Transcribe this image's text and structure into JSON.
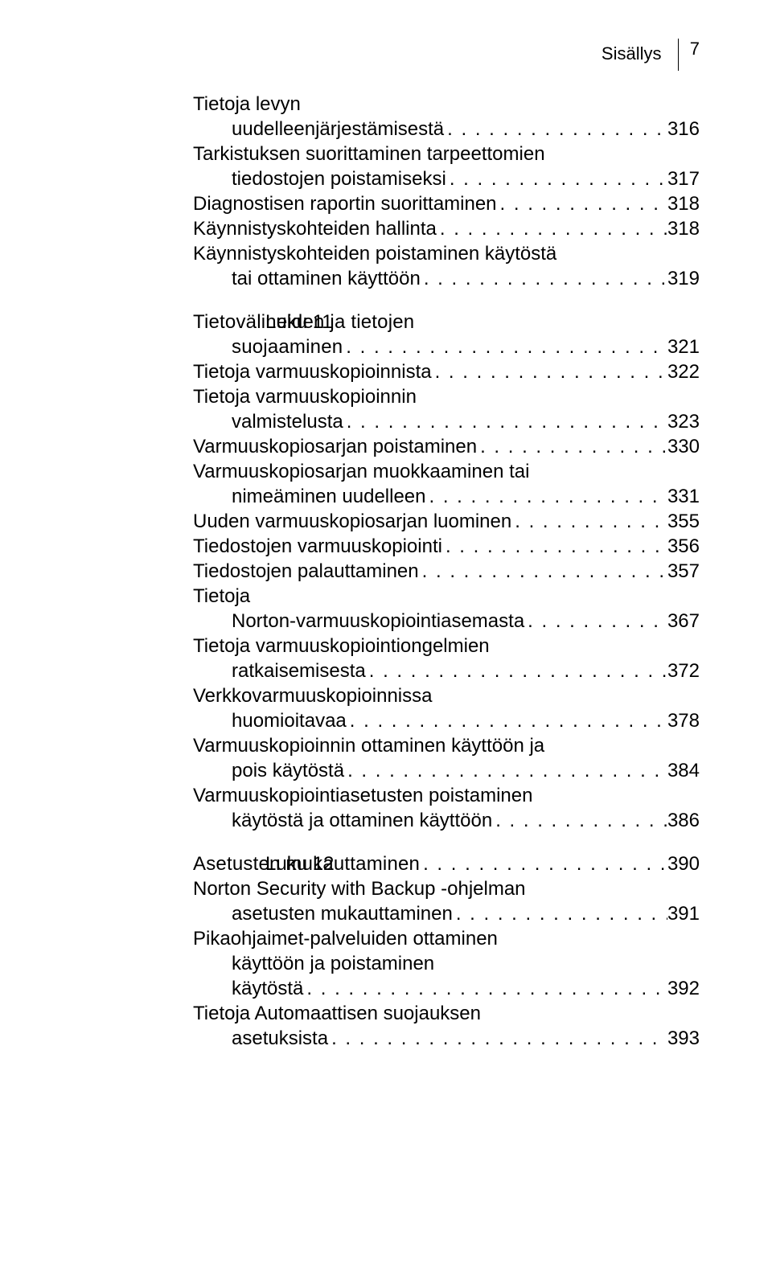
{
  "page_header": {
    "label": "Sisällys",
    "number": "7"
  },
  "intro_block": [
    {
      "text": "Tietoja levyn",
      "cont": true
    },
    {
      "text": "uudelleenjärjestämisestä",
      "indent": true,
      "page": "316"
    },
    {
      "text": "Tarkistuksen suorittaminen tarpeettomien",
      "cont": true
    },
    {
      "text": "tiedostojen poistamiseksi",
      "indent": true,
      "page": "317"
    },
    {
      "text": "Diagnostisen raportin suorittaminen",
      "page": "318"
    },
    {
      "text": "Käynnistyskohteiden hallinta",
      "page": "318"
    },
    {
      "text": "Käynnistyskohteiden poistaminen käytöstä",
      "cont": true
    },
    {
      "text": "tai ottaminen käyttöön",
      "indent": true,
      "page": "319"
    }
  ],
  "chapters": [
    {
      "label": "Luku 11",
      "head": {
        "text": "Tietovälineiden ja tietojen",
        "cont": true
      },
      "head2": {
        "text": "suojaaminen",
        "indent": true,
        "page": "321"
      },
      "entries": [
        {
          "text": "Tietoja varmuuskopioinnista",
          "page": "322"
        },
        {
          "text": "Tietoja varmuuskopioinnin",
          "cont": true
        },
        {
          "text": "valmistelusta",
          "indent": true,
          "page": "323"
        },
        {
          "text": "Varmuuskopiosarjan poistaminen",
          "page": "330"
        },
        {
          "text": "Varmuuskopiosarjan muokkaaminen tai",
          "cont": true
        },
        {
          "text": "nimeäminen uudelleen",
          "indent": true,
          "page": "331"
        },
        {
          "text": "Uuden varmuuskopiosarjan luominen",
          "page": "355"
        },
        {
          "text": "Tiedostojen varmuuskopiointi",
          "page": "356"
        },
        {
          "text": "Tiedostojen palauttaminen",
          "page": "357"
        },
        {
          "text": "Tietoja",
          "cont": true
        },
        {
          "text": "Norton-varmuuskopiointiasemasta",
          "indent": true,
          "page": "367"
        },
        {
          "text": "Tietoja varmuuskopiointiongelmien",
          "cont": true
        },
        {
          "text": "ratkaisemisesta",
          "indent": true,
          "page": "372"
        },
        {
          "text": "Verkkovarmuuskopioinnissa",
          "cont": true
        },
        {
          "text": "huomioitavaa",
          "indent": true,
          "page": "378"
        },
        {
          "text": "Varmuuskopioinnin ottaminen käyttöön ja",
          "cont": true
        },
        {
          "text": "pois käytöstä",
          "indent": true,
          "page": "384"
        },
        {
          "text": "Varmuuskopiointiasetusten poistaminen",
          "cont": true
        },
        {
          "text": "käytöstä ja ottaminen käyttöön",
          "indent": true,
          "page": "386"
        }
      ]
    },
    {
      "label": "Luku 12",
      "head": {
        "text": "Asetusten mukauttaminen",
        "page": "390"
      },
      "entries": [
        {
          "text": "Norton Security with Backup -ohjelman",
          "cont": true
        },
        {
          "text": "asetusten mukauttaminen",
          "indent": true,
          "page": "391"
        },
        {
          "text": "Pikaohjaimet-palveluiden ottaminen",
          "cont": true
        },
        {
          "text": "käyttöön ja poistaminen",
          "indent": true,
          "cont": true
        },
        {
          "text": "käytöstä",
          "indent": true,
          "page": "392"
        },
        {
          "text": "Tietoja Automaattisen suojauksen",
          "cont": true
        },
        {
          "text": "asetuksista",
          "indent": true,
          "page": "393"
        }
      ]
    }
  ],
  "colors": {
    "text": "#000000",
    "background": "#ffffff"
  },
  "fontsizes": {
    "body": 24,
    "header": 22
  }
}
